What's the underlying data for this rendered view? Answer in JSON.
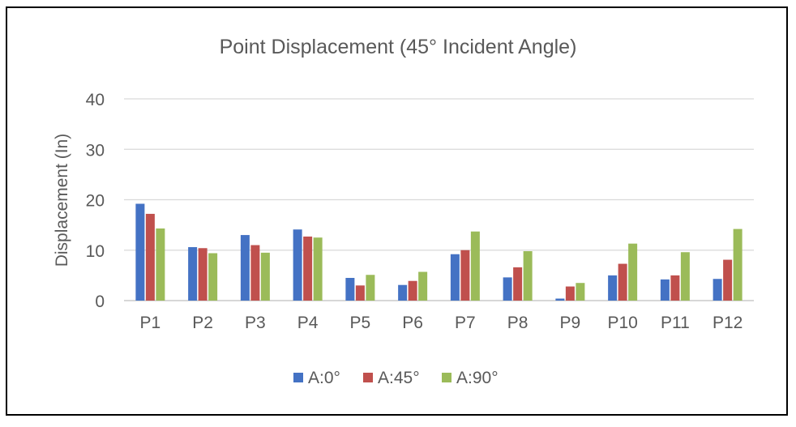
{
  "chart_data": {
    "type": "bar",
    "title": "Point Displacement (45° Incident Angle)",
    "xlabel": "",
    "ylabel": "Displacement (In)",
    "ylim": [
      0,
      40
    ],
    "yticks": [
      0,
      10,
      20,
      30,
      40
    ],
    "grid": true,
    "legend_position": "bottom",
    "categories": [
      "P1",
      "P2",
      "P3",
      "P4",
      "P5",
      "P6",
      "P7",
      "P8",
      "P9",
      "P10",
      "P11",
      "P12"
    ],
    "series": [
      {
        "name": "A:0°",
        "color": "#4472c4",
        "values": [
          19.2,
          10.6,
          13.0,
          14.1,
          4.5,
          3.1,
          9.2,
          4.6,
          0.4,
          5.0,
          4.2,
          4.3
        ]
      },
      {
        "name": "A:45°",
        "color": "#c0504d",
        "values": [
          17.2,
          10.4,
          11.0,
          12.7,
          3.0,
          3.9,
          10.0,
          6.6,
          2.8,
          7.3,
          5.0,
          8.1
        ]
      },
      {
        "name": "A:90°",
        "color": "#9bbb59",
        "values": [
          14.3,
          9.4,
          9.5,
          12.5,
          5.1,
          5.7,
          13.7,
          9.8,
          3.5,
          11.3,
          9.6,
          14.2
        ]
      }
    ]
  }
}
